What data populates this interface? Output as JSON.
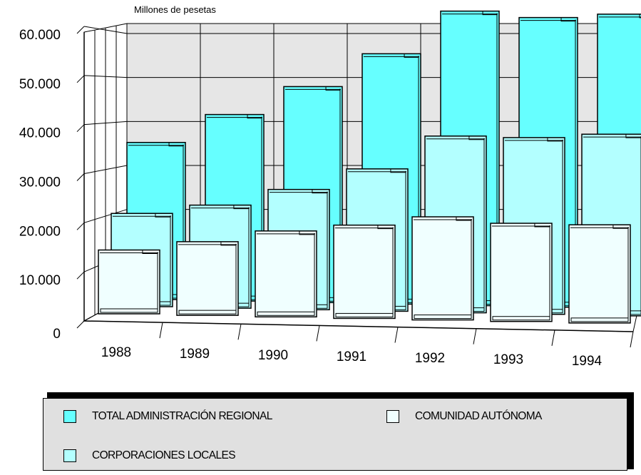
{
  "chart_data": {
    "type": "bar",
    "unit_label": "Millones de pesetas",
    "categories": [
      "1988",
      "1989",
      "1990",
      "1991",
      "1992",
      "1993",
      "1994"
    ],
    "y_ticks": [
      "0",
      "10.000",
      "20.000",
      "30.000",
      "40.000",
      "50.000",
      "60.000"
    ],
    "ylim": [
      0,
      60000
    ],
    "series": [
      {
        "name": "TOTAL ADMINISTRACIÓN REGIONAL",
        "color": "#66ffff",
        "values": [
          32000,
          38000,
          44000,
          51000,
          60000,
          59000,
          60000
        ]
      },
      {
        "name": "CORPORACIONES LOCALES",
        "color": "#b3ffff",
        "values": [
          19000,
          21000,
          24500,
          29000,
          36000,
          36000,
          37000
        ]
      },
      {
        "name": "COMUNIDAD AUTÓNOMA",
        "color": "#f0ffff",
        "values": [
          13000,
          15000,
          17500,
          19000,
          21000,
          20000,
          20000
        ]
      }
    ],
    "grid": true,
    "legend_position": "bottom"
  }
}
